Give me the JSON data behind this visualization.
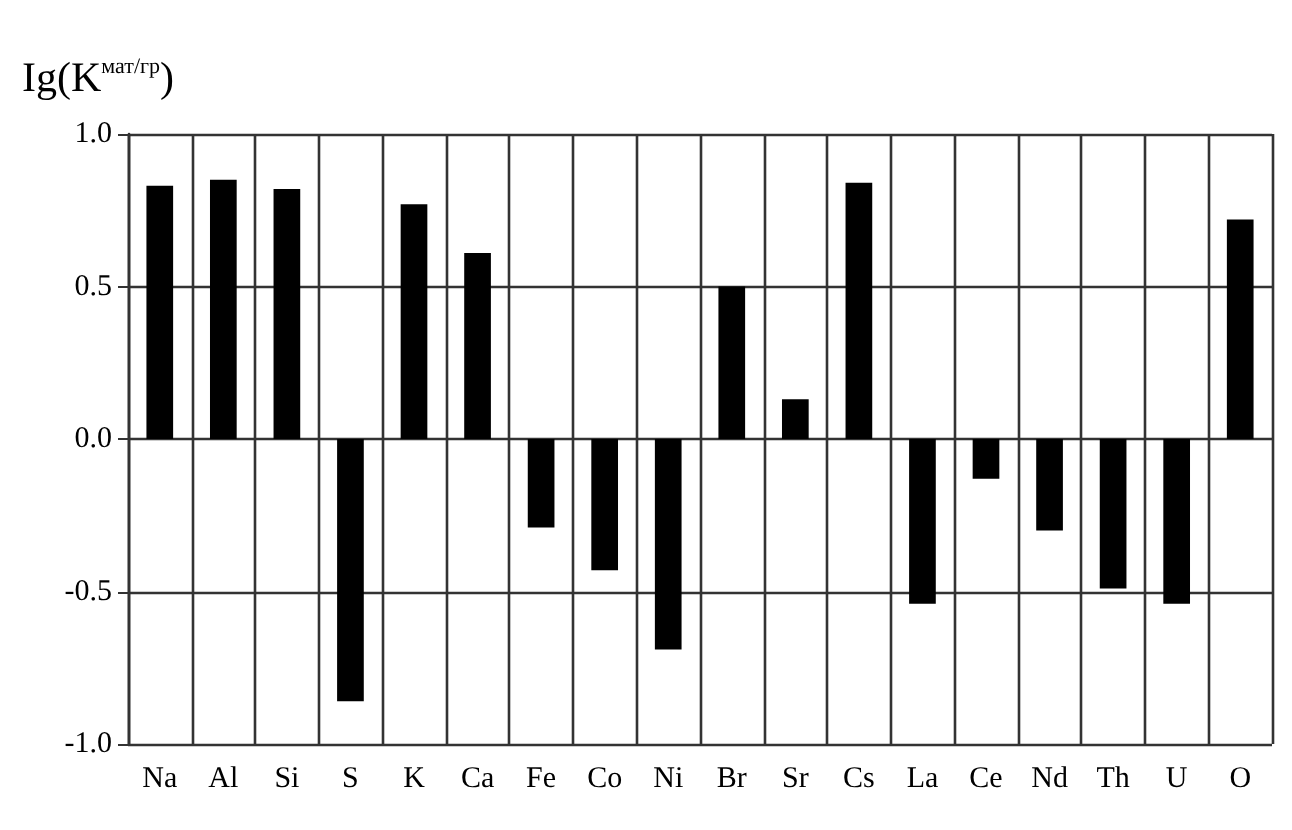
{
  "chart_data": {
    "type": "bar",
    "ylabel": "Ig(K$^{мат/гр}$)",
    "categories": [
      "Na",
      "Al",
      "Si",
      "S",
      "K",
      "Ca",
      "Fe",
      "Co",
      "Ni",
      "Br",
      "Sr",
      "Cs",
      "La",
      "Ce",
      "Nd",
      "Th",
      "U",
      "O"
    ],
    "values": [
      0.83,
      0.85,
      0.82,
      -0.86,
      0.77,
      0.61,
      -0.29,
      -0.43,
      -0.69,
      0.5,
      0.13,
      0.84,
      -0.54,
      -0.13,
      -0.3,
      -0.49,
      -0.54,
      0.72
    ],
    "color": "#000000",
    "ylim": [
      -1,
      1
    ],
    "yticks": [
      {
        "value": -1,
        "label": "-1.0"
      },
      {
        "value": -0.5,
        "label": "-0.5"
      },
      {
        "value": 0,
        "label": "0.0"
      },
      {
        "value": 0.5,
        "label": "0.5"
      },
      {
        "value": 1,
        "label": "1.0"
      }
    ],
    "grid": true
  }
}
